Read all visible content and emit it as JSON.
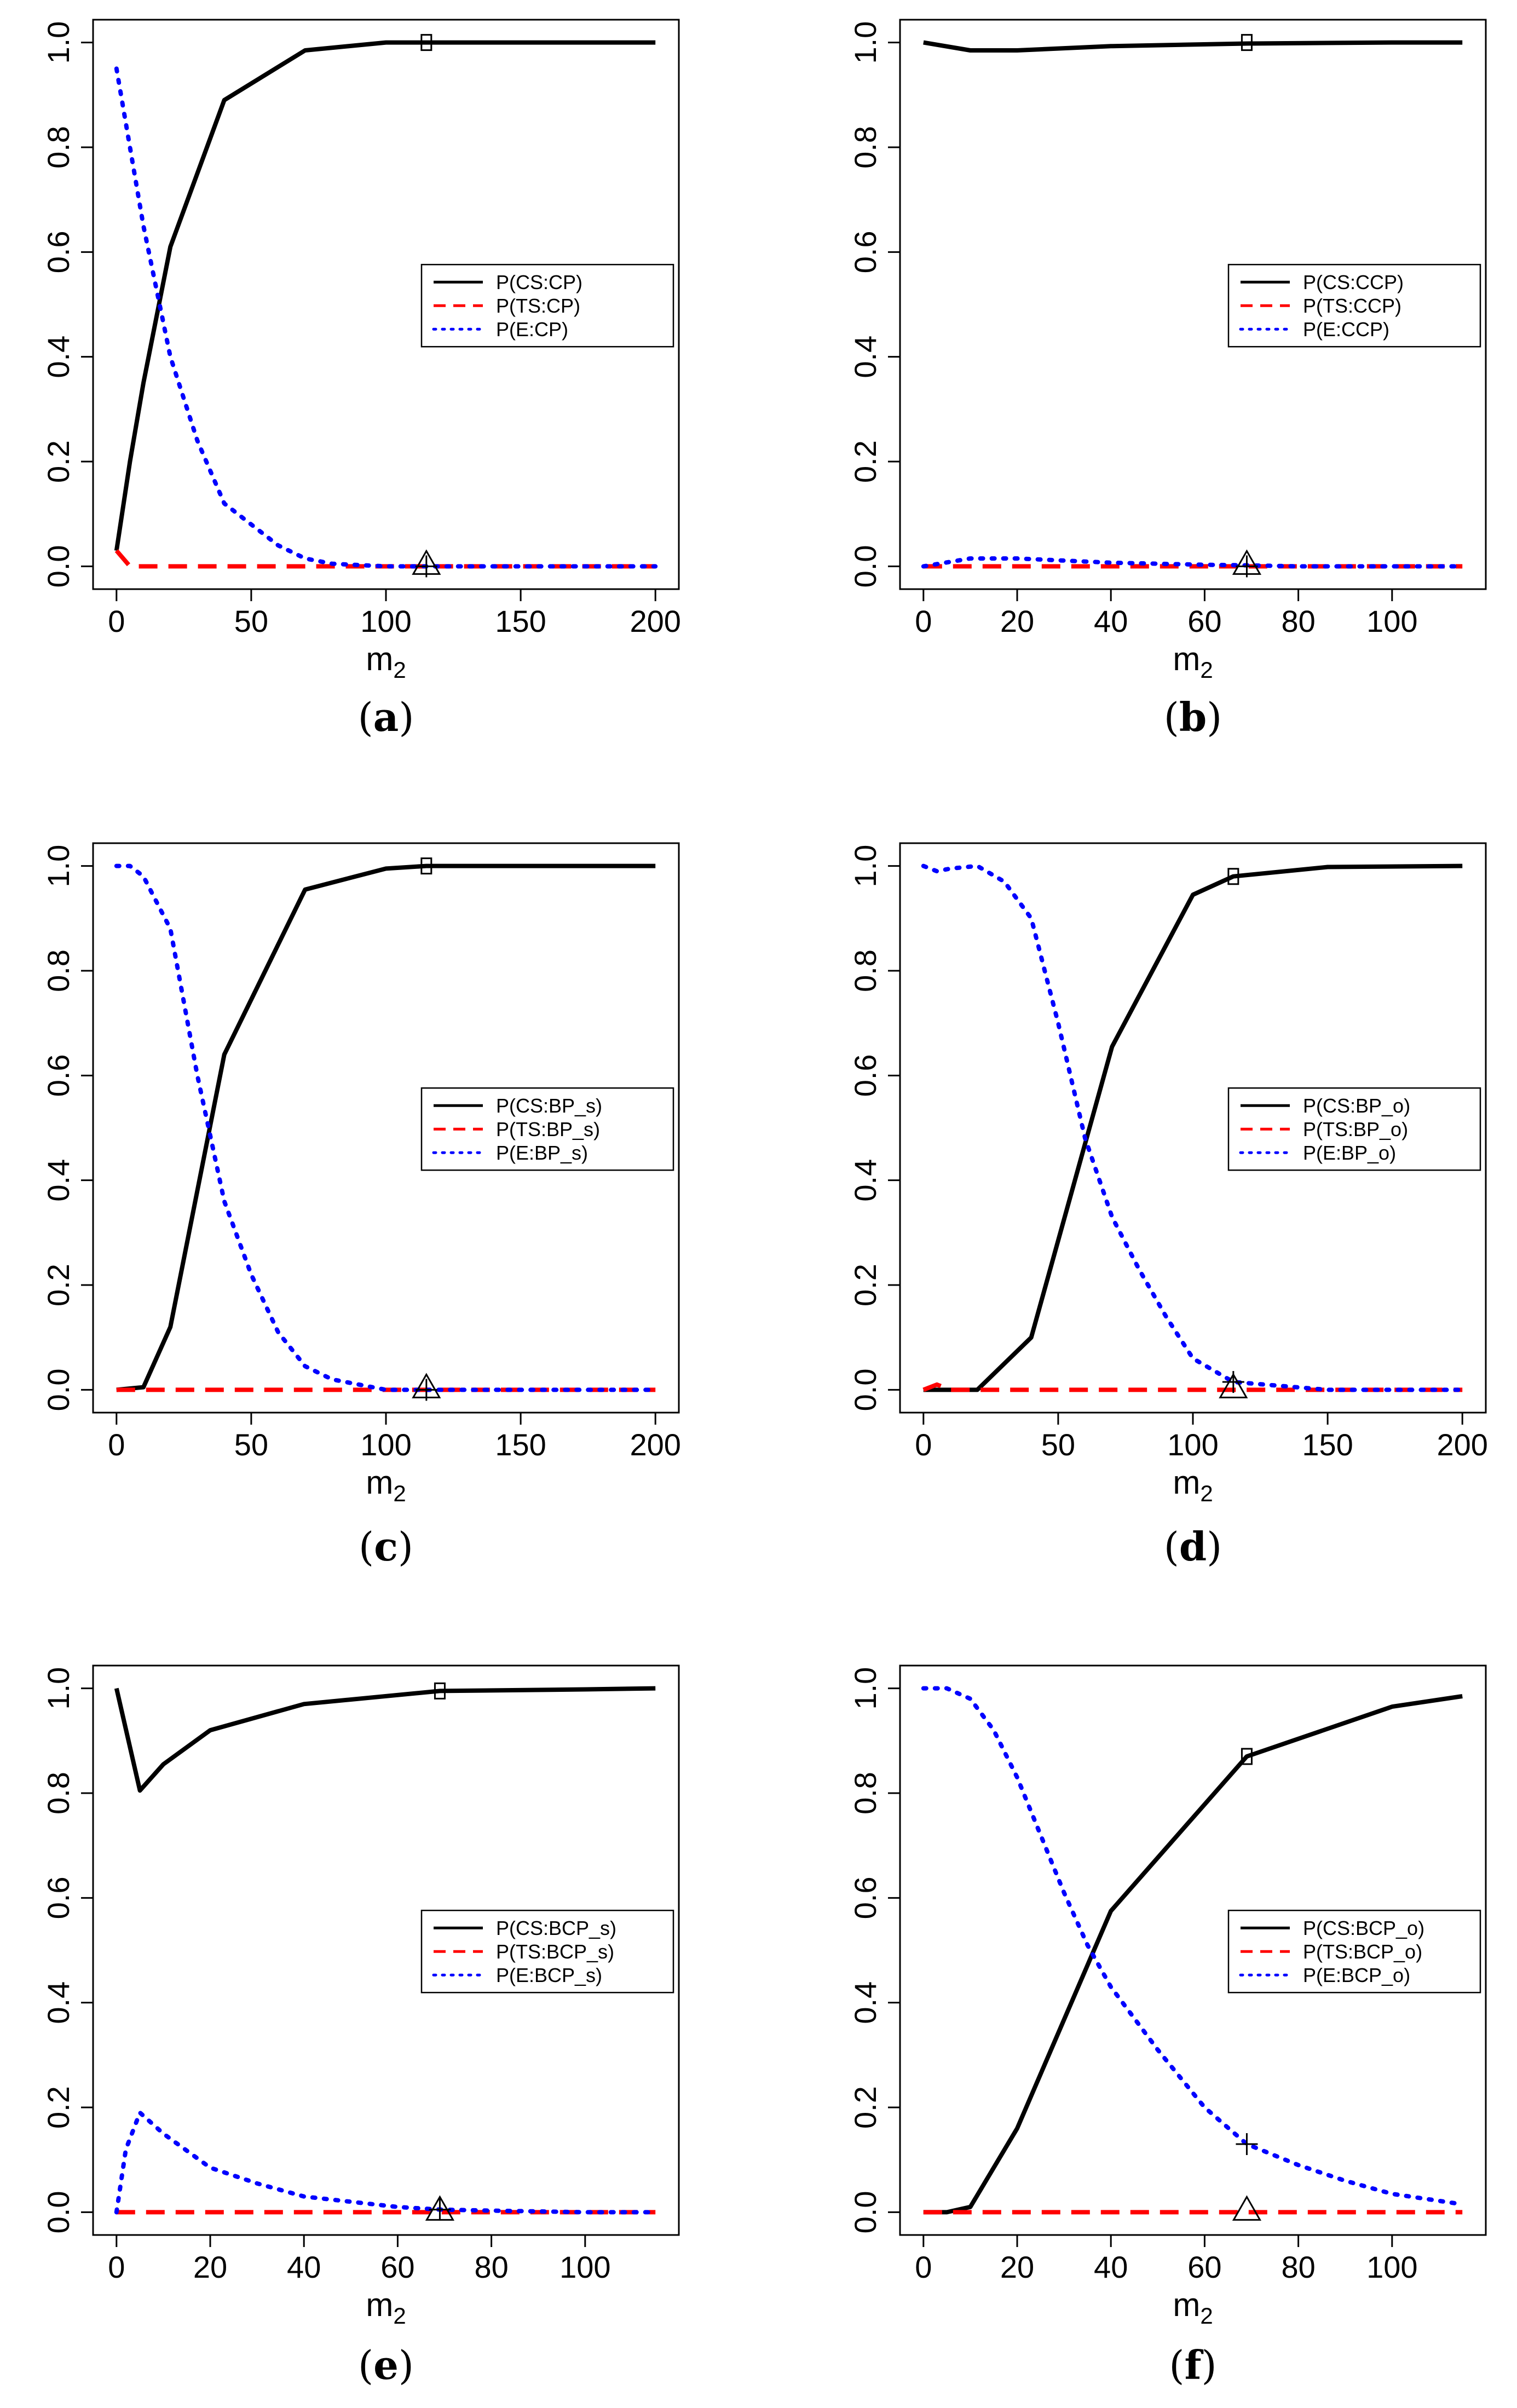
{
  "colors": {
    "cs": "#000000",
    "ts": "#ff0000",
    "e": "#0000ff",
    "frame": "#000000"
  },
  "chart_data": [
    {
      "type": "line",
      "panel": "a",
      "caption": "(a)",
      "xlabel": "m2",
      "ylabel": "",
      "xlim": [
        0,
        200
      ],
      "ylim": [
        0,
        1
      ],
      "xticks": [
        0,
        50,
        100,
        150,
        200
      ],
      "yticks": [
        0.0,
        0.2,
        0.4,
        0.6,
        0.8,
        1.0
      ],
      "ytick_labels": [
        "0.0",
        "0.2",
        "0.4",
        "0.6",
        "0.8",
        "1.0"
      ],
      "legend_position": "right-middle",
      "series": [
        {
          "name": "P(CS:CP)",
          "style": "solid",
          "color": "black",
          "x": [
            0,
            5,
            10,
            20,
            40,
            70,
            100,
            115,
            150,
            200
          ],
          "y": [
            0.03,
            0.2,
            0.35,
            0.61,
            0.89,
            0.985,
            1.0,
            1.0,
            1.0,
            1.0
          ]
        },
        {
          "name": "P(TS:CP)",
          "style": "dashed",
          "color": "red",
          "x": [
            0,
            5,
            10,
            20,
            40,
            70,
            100,
            115,
            150,
            200
          ],
          "y": [
            0.03,
            0.0,
            0.0,
            0.0,
            0.0,
            0.0,
            0.0,
            0.0,
            0.0,
            0.0
          ]
        },
        {
          "name": "P(E:CP)",
          "style": "dotted",
          "color": "blue",
          "x": [
            0,
            5,
            10,
            20,
            30,
            40,
            50,
            60,
            70,
            80,
            100,
            115,
            150,
            200
          ],
          "y": [
            0.95,
            0.8,
            0.65,
            0.4,
            0.24,
            0.12,
            0.08,
            0.04,
            0.015,
            0.005,
            0.0,
            0.0,
            0.0,
            0.0
          ]
        }
      ],
      "markers": [
        {
          "shape": "square",
          "x": 115,
          "y": 1.0
        },
        {
          "shape": "triangle",
          "x": 115,
          "y": 0.0
        },
        {
          "shape": "plus",
          "x": 115,
          "y": 0.0
        }
      ]
    },
    {
      "type": "line",
      "panel": "b",
      "caption": "(b)",
      "xlabel": "m2",
      "ylabel": "",
      "xlim": [
        0,
        115
      ],
      "ylim": [
        0,
        1
      ],
      "xticks": [
        0,
        20,
        40,
        60,
        80,
        100
      ],
      "yticks": [
        0.0,
        0.2,
        0.4,
        0.6,
        0.8,
        1.0
      ],
      "ytick_labels": [
        "0.0",
        "0.2",
        "0.4",
        "0.6",
        "0.8",
        "1.0"
      ],
      "legend_position": "right-middle",
      "series": [
        {
          "name": "P(CS:CCP)",
          "style": "solid",
          "color": "black",
          "x": [
            0,
            10,
            20,
            40,
            69,
            100,
            115
          ],
          "y": [
            1.0,
            0.985,
            0.985,
            0.993,
            0.998,
            1.0,
            1.0
          ]
        },
        {
          "name": "P(TS:CCP)",
          "style": "dashed",
          "color": "red",
          "x": [
            0,
            10,
            20,
            40,
            69,
            100,
            115
          ],
          "y": [
            0.0,
            0.0,
            0.0,
            0.0,
            0.0,
            0.0,
            0.0
          ]
        },
        {
          "name": "P(E:CCP)",
          "style": "dotted",
          "color": "blue",
          "x": [
            0,
            10,
            20,
            40,
            60,
            69,
            80,
            100,
            115
          ],
          "y": [
            0.0,
            0.015,
            0.015,
            0.007,
            0.003,
            0.002,
            0.0,
            0.0,
            0.0
          ]
        }
      ],
      "markers": [
        {
          "shape": "square",
          "x": 69,
          "y": 1.0
        },
        {
          "shape": "triangle",
          "x": 69,
          "y": 0.0
        },
        {
          "shape": "plus",
          "x": 69,
          "y": 0.0
        }
      ]
    },
    {
      "type": "line",
      "panel": "c",
      "caption": "(c)",
      "xlabel": "m2",
      "ylabel": "",
      "xlim": [
        0,
        200
      ],
      "ylim": [
        0,
        1
      ],
      "xticks": [
        0,
        50,
        100,
        150,
        200
      ],
      "yticks": [
        0.0,
        0.2,
        0.4,
        0.6,
        0.8,
        1.0
      ],
      "ytick_labels": [
        "0.0",
        "0.2",
        "0.4",
        "0.6",
        "0.8",
        "1.0"
      ],
      "legend_position": "right-middle",
      "series": [
        {
          "name": "P(CS:BP_s)",
          "style": "solid",
          "color": "black",
          "x": [
            0,
            10,
            20,
            40,
            70,
            100,
            115,
            150,
            200
          ],
          "y": [
            0.0,
            0.005,
            0.12,
            0.64,
            0.955,
            0.995,
            1.0,
            1.0,
            1.0
          ]
        },
        {
          "name": "P(TS:BP_s)",
          "style": "dashed",
          "color": "red",
          "x": [
            0,
            10,
            20,
            40,
            70,
            100,
            115,
            150,
            200
          ],
          "y": [
            0.0,
            0.0,
            0.0,
            0.0,
            0.0,
            0.0,
            0.0,
            0.0,
            0.0
          ]
        },
        {
          "name": "P(E:BP_s)",
          "style": "dotted",
          "color": "blue",
          "x": [
            0,
            5,
            10,
            20,
            30,
            40,
            50,
            60,
            70,
            80,
            100,
            115,
            150,
            200
          ],
          "y": [
            1.0,
            1.0,
            0.98,
            0.88,
            0.6,
            0.36,
            0.22,
            0.11,
            0.045,
            0.02,
            0.0,
            0.0,
            0.0,
            0.0
          ]
        }
      ],
      "markers": [
        {
          "shape": "square",
          "x": 115,
          "y": 1.0
        },
        {
          "shape": "triangle",
          "x": 115,
          "y": 0.0
        },
        {
          "shape": "plus",
          "x": 115,
          "y": 0.0
        }
      ]
    },
    {
      "type": "line",
      "panel": "d",
      "caption": "(d)",
      "xlabel": "m2",
      "ylabel": "",
      "xlim": [
        0,
        200
      ],
      "ylim": [
        0,
        1
      ],
      "xticks": [
        0,
        50,
        100,
        150,
        200
      ],
      "yticks": [
        0.0,
        0.2,
        0.4,
        0.6,
        0.8,
        1.0
      ],
      "ytick_labels": [
        "0.0",
        "0.2",
        "0.4",
        "0.6",
        "0.8",
        "1.0"
      ],
      "legend_position": "right-middle",
      "series": [
        {
          "name": "P(CS:BP_o)",
          "style": "solid",
          "color": "black",
          "x": [
            0,
            10,
            20,
            40,
            70,
            100,
            115,
            150,
            200
          ],
          "y": [
            0.0,
            0.0,
            0.0,
            0.1,
            0.655,
            0.945,
            0.98,
            0.998,
            1.0
          ]
        },
        {
          "name": "P(TS:BP_o)",
          "style": "dashed",
          "color": "red",
          "x": [
            0,
            5,
            10,
            20,
            40,
            70,
            100,
            115,
            150,
            200
          ],
          "y": [
            0.0,
            0.01,
            0.0,
            0.0,
            0.0,
            0.0,
            0.0,
            0.0,
            0.0,
            0.0
          ]
        },
        {
          "name": "P(E:BP_o)",
          "style": "dotted",
          "color": "blue",
          "x": [
            0,
            5,
            10,
            20,
            30,
            40,
            50,
            60,
            70,
            80,
            90,
            100,
            115,
            150,
            200
          ],
          "y": [
            1.0,
            0.99,
            0.995,
            1.0,
            0.97,
            0.9,
            0.7,
            0.48,
            0.33,
            0.23,
            0.14,
            0.06,
            0.015,
            0.0,
            0.0
          ]
        }
      ],
      "markers": [
        {
          "shape": "square",
          "x": 115,
          "y": 0.98
        },
        {
          "shape": "triangle",
          "x": 115,
          "y": 0.0
        },
        {
          "shape": "plus",
          "x": 115,
          "y": 0.015
        }
      ]
    },
    {
      "type": "line",
      "panel": "e",
      "caption": "(e)",
      "xlabel": "m2",
      "ylabel": "",
      "xlim": [
        0,
        115
      ],
      "ylim": [
        0,
        1
      ],
      "xticks": [
        0,
        20,
        40,
        60,
        80,
        100
      ],
      "yticks": [
        0.0,
        0.2,
        0.4,
        0.6,
        0.8,
        1.0
      ],
      "ytick_labels": [
        "0.0",
        "0.2",
        "0.4",
        "0.6",
        "0.8",
        "1.0"
      ],
      "legend_position": "right-middle",
      "series": [
        {
          "name": "P(CS:BCP_s)",
          "style": "solid",
          "color": "black",
          "x": [
            0,
            5,
            10,
            20,
            40,
            69,
            100,
            115
          ],
          "y": [
            1.0,
            0.805,
            0.855,
            0.92,
            0.97,
            0.995,
            0.998,
            1.0
          ]
        },
        {
          "name": "P(TS:BCP_s)",
          "style": "dashed",
          "color": "red",
          "x": [
            0,
            5,
            10,
            20,
            40,
            69,
            100,
            115
          ],
          "y": [
            0.0,
            0.0,
            0.0,
            0.0,
            0.0,
            0.0,
            0.0,
            0.0
          ]
        },
        {
          "name": "P(E:BCP_s)",
          "style": "dotted",
          "color": "blue",
          "x": [
            0,
            2,
            5,
            10,
            20,
            30,
            40,
            50,
            60,
            69,
            80,
            100,
            115
          ],
          "y": [
            0.0,
            0.12,
            0.19,
            0.15,
            0.085,
            0.055,
            0.03,
            0.02,
            0.01,
            0.005,
            0.003,
            0.0,
            0.0
          ]
        }
      ],
      "markers": [
        {
          "shape": "square",
          "x": 69,
          "y": 0.995
        },
        {
          "shape": "triangle",
          "x": 69,
          "y": 0.0
        },
        {
          "shape": "plus",
          "x": 69,
          "y": 0.005
        }
      ]
    },
    {
      "type": "line",
      "panel": "f",
      "caption": "(f)",
      "xlabel": "m2",
      "ylabel": "",
      "xlim": [
        0,
        115
      ],
      "ylim": [
        0,
        1
      ],
      "xticks": [
        0,
        20,
        40,
        60,
        80,
        100
      ],
      "yticks": [
        0.0,
        0.2,
        0.4,
        0.6,
        0.8,
        1.0
      ],
      "ytick_labels": [
        "0.0",
        "0.2",
        "0.4",
        "0.6",
        "0.8",
        "1.0"
      ],
      "legend_position": "right-middle",
      "series": [
        {
          "name": "P(CS:BCP_o)",
          "style": "solid",
          "color": "black",
          "x": [
            0,
            5,
            10,
            20,
            40,
            69,
            100,
            115
          ],
          "y": [
            0.0,
            0.0,
            0.01,
            0.16,
            0.575,
            0.87,
            0.965,
            0.985
          ]
        },
        {
          "name": "P(TS:BCP_o)",
          "style": "dashed",
          "color": "red",
          "x": [
            0,
            5,
            10,
            20,
            40,
            69,
            100,
            115
          ],
          "y": [
            0.0,
            0.0,
            0.0,
            0.0,
            0.0,
            0.0,
            0.0,
            0.0
          ]
        },
        {
          "name": "P(E:BCP_o)",
          "style": "dotted",
          "color": "blue",
          "x": [
            0,
            5,
            10,
            15,
            20,
            25,
            30,
            35,
            40,
            50,
            60,
            69,
            80,
            90,
            100,
            115
          ],
          "y": [
            1.0,
            1.0,
            0.98,
            0.92,
            0.83,
            0.72,
            0.61,
            0.51,
            0.43,
            0.31,
            0.2,
            0.13,
            0.09,
            0.06,
            0.035,
            0.015
          ]
        }
      ],
      "markers": [
        {
          "shape": "square",
          "x": 69,
          "y": 0.87
        },
        {
          "shape": "triangle",
          "x": 69,
          "y": 0.0
        },
        {
          "shape": "plus",
          "x": 69,
          "y": 0.13
        }
      ]
    }
  ]
}
